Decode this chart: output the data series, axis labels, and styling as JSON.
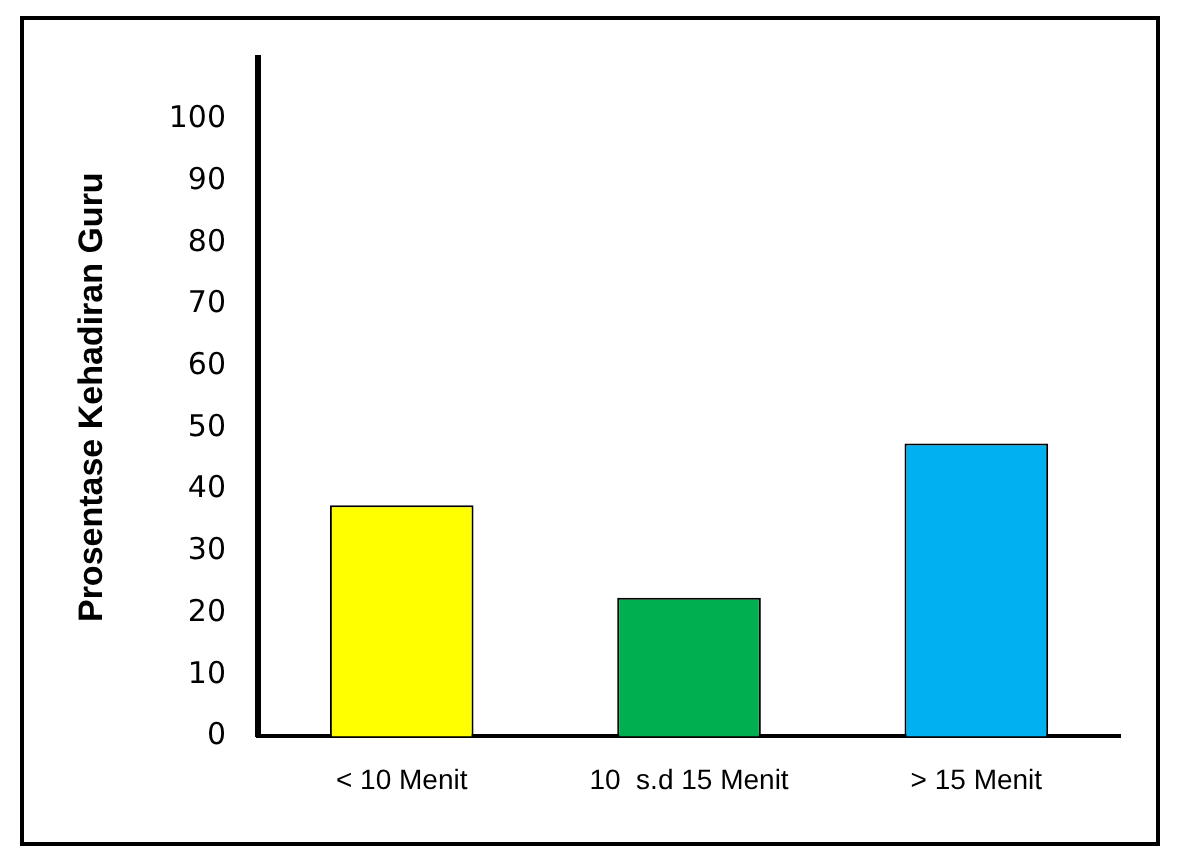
{
  "chart_data": {
    "type": "bar",
    "ylabel": "Prosentase Kehadiran Guru",
    "categories": [
      "< 10 Menit",
      "10  s.d 15 Menit",
      "> 15 Menit"
    ],
    "values": [
      37.5,
      22.5,
      47.5
    ],
    "colors": [
      "#ffff00",
      "#00b050",
      "#00b0f0"
    ],
    "ylim": [
      0,
      110
    ],
    "yticks": [
      0,
      10,
      20,
      30,
      40,
      50,
      60,
      70,
      80,
      90,
      100
    ],
    "grid": false,
    "legend": false
  }
}
